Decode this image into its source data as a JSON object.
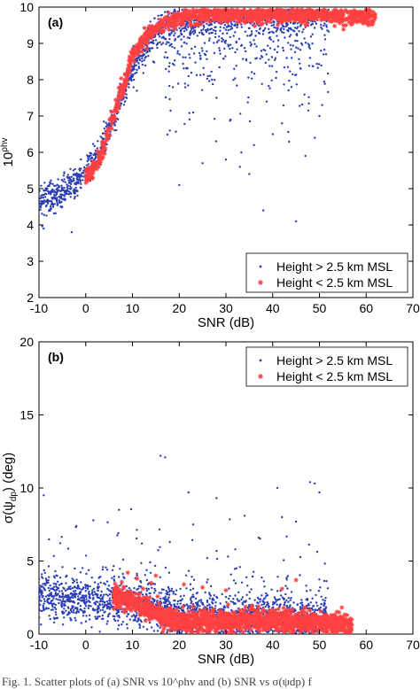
{
  "caption": "Fig. 1. Scatter plots of (a) SNR vs 10^ρhv and (b) SNR vs σ(ψdp) f",
  "chart_data": [
    {
      "type": "scatter",
      "panel_label": "(a)",
      "xlabel": "SNR (dB)",
      "ylabel": "10^ρhv",
      "ylabel_main": "10",
      "ylabel_sup": "ρhv",
      "xlim": [
        -10,
        70
      ],
      "ylim": [
        2,
        10
      ],
      "xticks": [
        -10,
        0,
        10,
        20,
        30,
        40,
        50,
        60,
        70
      ],
      "yticks": [
        2,
        3,
        4,
        5,
        6,
        7,
        8,
        9,
        10
      ],
      "legend_position": "bottom-right",
      "series": [
        {
          "name": "Height > 2.5 km MSL",
          "color": "#2b3fb5",
          "marker": "dot",
          "trend": [
            [
              -10,
              4.7
            ],
            [
              -5,
              4.9
            ],
            [
              0,
              5.4
            ],
            [
              3,
              6.0
            ],
            [
              5,
              6.6
            ],
            [
              8,
              7.6
            ],
            [
              10,
              8.3
            ],
            [
              13,
              9.0
            ],
            [
              16,
              9.4
            ],
            [
              20,
              9.6
            ],
            [
              30,
              9.7
            ],
            [
              40,
              9.75
            ],
            [
              52,
              9.8
            ]
          ],
          "outliers": [
            [
              -9,
              3.9
            ],
            [
              -3,
              3.8
            ],
            [
              20,
              5.1
            ],
            [
              25,
              5.7
            ],
            [
              30,
              5.8
            ],
            [
              33,
              5.6
            ],
            [
              35,
              5.4
            ],
            [
              38,
              4.4
            ],
            [
              45,
              4.1
            ],
            [
              47,
              5.9
            ],
            [
              49,
              6.4
            ],
            [
              50,
              7.0
            ],
            [
              18,
              6.6
            ],
            [
              23,
              7.1
            ],
            [
              28,
              7.5
            ],
            [
              42,
              6.8
            ],
            [
              36,
              6.2
            ],
            [
              44,
              7.8
            ],
            [
              27,
              8.0
            ],
            [
              48,
              8.6
            ],
            [
              31,
              6.9
            ],
            [
              22,
              8.1
            ],
            [
              40,
              6.5
            ]
          ],
          "x_range": [
            -10,
            52
          ]
        },
        {
          "name": "Height < 2.5 km MSL",
          "color": "#ff4040",
          "marker": "asterisk",
          "trend": [
            [
              0,
              5.3
            ],
            [
              3,
              5.8
            ],
            [
              5,
              6.6
            ],
            [
              8,
              7.8
            ],
            [
              10,
              8.6
            ],
            [
              13,
              9.2
            ],
            [
              16,
              9.5
            ],
            [
              20,
              9.7
            ],
            [
              30,
              9.8
            ],
            [
              40,
              9.8
            ],
            [
              50,
              9.8
            ],
            [
              62,
              9.7
            ]
          ],
          "x_range": [
            0,
            62
          ]
        }
      ]
    },
    {
      "type": "scatter",
      "panel_label": "(b)",
      "xlabel": "SNR (dB)",
      "ylabel": "σ(ψdp) (deg)",
      "ylabel_main": "σ(ψ",
      "ylabel_sub": "dp",
      "ylabel_tail": ") (deg)",
      "xlim": [
        -10,
        70
      ],
      "ylim": [
        0,
        20
      ],
      "xticks": [
        -10,
        0,
        10,
        20,
        30,
        40,
        50,
        60,
        70
      ],
      "yticks": [
        0,
        5,
        10,
        15,
        20
      ],
      "legend_position": "top-right",
      "series": [
        {
          "name": "Height > 2.5 km MSL",
          "color": "#2b3fb5",
          "marker": "dot",
          "trend": [
            [
              -10,
              2.6
            ],
            [
              0,
              2.4
            ],
            [
              10,
              2.0
            ],
            [
              20,
              1.4
            ],
            [
              30,
              1.2
            ],
            [
              40,
              1.2
            ],
            [
              50,
              1.0
            ]
          ],
          "outliers": [
            [
              16,
              12.2
            ],
            [
              17,
              12.1
            ],
            [
              48,
              10.4
            ],
            [
              49,
              10.3
            ],
            [
              50,
              9.7
            ],
            [
              -9,
              9.5
            ],
            [
              22,
              9.7
            ],
            [
              28,
              9.3
            ],
            [
              41,
              10.0
            ],
            [
              23,
              7.5
            ],
            [
              45,
              7.7
            ],
            [
              34,
              8.1
            ],
            [
              42,
              8.0
            ],
            [
              12,
              6.2
            ],
            [
              18,
              6.3
            ],
            [
              -2,
              7.4
            ],
            [
              32,
              5.8
            ],
            [
              26,
              5.2
            ],
            [
              37,
              6.6
            ],
            [
              8,
              5.1
            ]
          ],
          "x_range": [
            -10,
            52
          ]
        },
        {
          "name": "Height < 2.5 km MSL",
          "color": "#ff4040",
          "marker": "asterisk",
          "trend": [
            [
              8,
              2.6
            ],
            [
              12,
              2.0
            ],
            [
              16,
              1.2
            ],
            [
              20,
              0.9
            ],
            [
              30,
              0.9
            ],
            [
              40,
              0.9
            ],
            [
              50,
              0.8
            ],
            [
              57,
              0.6
            ]
          ],
          "outliers": [
            [
              9,
              4.2
            ],
            [
              11,
              3.8
            ],
            [
              14,
              3.5
            ],
            [
              15,
              4.0
            ],
            [
              21,
              3.4
            ],
            [
              25,
              3.2
            ],
            [
              30,
              3.0
            ],
            [
              45,
              3.7
            ],
            [
              42,
              3.1
            ]
          ],
          "x_range": [
            6,
            57
          ]
        }
      ]
    }
  ]
}
